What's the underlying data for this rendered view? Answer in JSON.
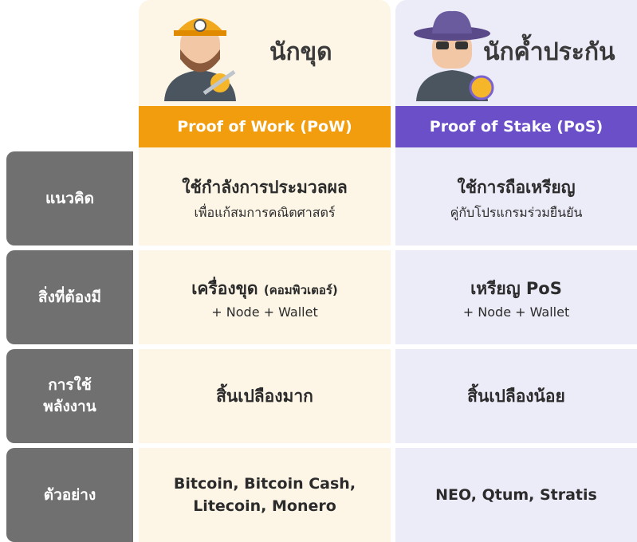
{
  "columns": [
    {
      "title": "นักขุด",
      "header": "Proof of Work (PoW)"
    },
    {
      "title": "นักค้ำประกัน",
      "header": "Proof of Stake (PoS)"
    }
  ],
  "rows": [
    {
      "label": [
        "แนวคิด"
      ],
      "cells": [
        {
          "main": "ใช้กำลังการประมวลผล",
          "sub": "เพื่อแก้สมการคณิตศาสตร์"
        },
        {
          "main": "ใช้การถือเหรียญ",
          "sub": "คู่กับโปรแกรมร่วมยืนยัน"
        }
      ]
    },
    {
      "label": [
        "สิ่งที่ต้องมี"
      ],
      "cells": [
        {
          "main": "เครื่องขุด",
          "note": "(คอมพิวเตอร์)",
          "sub": "+ Node + Wallet"
        },
        {
          "main": "เหรียญ PoS",
          "sub": "+ Node + Wallet"
        }
      ]
    },
    {
      "label": [
        "การใช้",
        "พลังงาน"
      ],
      "cells": [
        {
          "main": "สิ้นเปลืองมาก"
        },
        {
          "main": "สิ้นเปลืองน้อย"
        }
      ]
    },
    {
      "label": [
        "ตัวอย่าง"
      ],
      "cells": [
        {
          "lines": [
            "Bitcoin, Bitcoin Cash,",
            "Litecoin, Monero"
          ]
        },
        {
          "lines": [
            "NEO, Qtum, Stratis"
          ]
        }
      ]
    }
  ]
}
